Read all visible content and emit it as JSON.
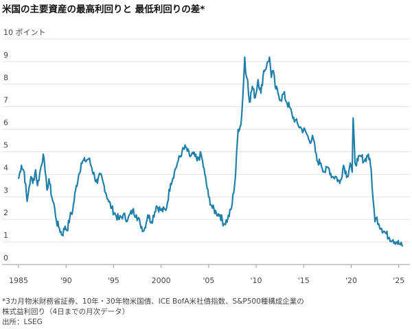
{
  "title": "米国の主要資産の最高利回りと 最低利回りの差*",
  "footnote": {
    "line1": "*3カ月物米財務省証券、10年・30年物米国債、ICE BofA米社債指数、S&P500種構成企業の",
    "line2": "株式益利回り（4日までの月次データ）",
    "source": "出所：LSEG"
  },
  "chart_data": {
    "type": "line",
    "title": "米国の主要資産の最高利回りと 最低利回りの差*",
    "ylabel": "ポイント",
    "ylim": [
      0,
      10
    ],
    "yticks": [
      0,
      1,
      2,
      3,
      4,
      5,
      6,
      7,
      8,
      9,
      10
    ],
    "ytick_labels": [
      "0",
      "1",
      "2",
      "3",
      "4",
      "5",
      "6",
      "7",
      "8",
      "9",
      "10"
    ],
    "top_tick_label": "10 ポイント",
    "xlim": [
      1985,
      2025.6
    ],
    "xticks": [
      1985,
      1990,
      1995,
      2000,
      2005,
      2010,
      2015,
      2020,
      2025
    ],
    "xtick_labels": [
      "1985",
      "'90",
      "'95",
      "2000",
      "'05",
      "'10",
      "'15",
      "'20",
      "'25"
    ],
    "grid": true,
    "line_color": "#1f7fa8",
    "series": [
      {
        "x": [
          1985.0,
          1985.3,
          1985.6,
          1985.9,
          1986.1,
          1986.3,
          1986.5,
          1986.8,
          1987.0,
          1987.3,
          1987.6,
          1987.8,
          1988.0,
          1988.2,
          1988.5,
          1988.8,
          1989.0,
          1989.3,
          1989.6,
          1989.9,
          1990.1,
          1990.4,
          1990.7,
          1991.0,
          1991.3,
          1991.6,
          1992.0,
          1992.4,
          1992.7,
          1993.0,
          1993.3,
          1993.6,
          1994.0,
          1994.4,
          1994.8,
          1995.2,
          1995.6,
          1996.0,
          1996.5,
          1997.0,
          1997.4,
          1997.8,
          1998.2,
          1998.6,
          1999.0,
          1999.5,
          2000.0,
          2000.5,
          2001.0,
          2001.4,
          2001.8,
          2002.2,
          2002.6,
          2003.0,
          2003.4,
          2003.8,
          2004.2,
          2004.6,
          2005.0,
          2005.4,
          2005.8,
          2006.2,
          2006.6,
          2007.0,
          2007.4,
          2007.8,
          2008.1,
          2008.4,
          2008.6,
          2008.8,
          2008.9,
          2009.1,
          2009.3,
          2009.6,
          2009.9,
          2010.2,
          2010.5,
          2010.8,
          2011.1,
          2011.4,
          2011.6,
          2011.8,
          2012.0,
          2012.3,
          2012.6,
          2012.9,
          2013.2,
          2013.5,
          2013.8,
          2014.1,
          2014.4,
          2014.8,
          2015.2,
          2015.6,
          2016.0,
          2016.4,
          2016.8,
          2017.2,
          2017.6,
          2018.0,
          2018.4,
          2018.8,
          2019.2,
          2019.6,
          2019.9,
          2020.1,
          2020.2,
          2020.4,
          2020.7,
          2021.0,
          2021.4,
          2021.8,
          2022.1,
          2022.3,
          2022.5,
          2022.7,
          2022.9,
          2023.2,
          2023.6,
          2024.0,
          2024.4,
          2024.8,
          2025.1,
          2025.4
        ],
        "y": [
          3.8,
          4.4,
          4.1,
          2.8,
          3.4,
          3.9,
          3.6,
          4.2,
          3.5,
          4.2,
          4.9,
          4.1,
          3.3,
          3.8,
          3.0,
          2.5,
          1.9,
          1.6,
          1.3,
          1.7,
          1.5,
          2.1,
          2.4,
          3.3,
          3.9,
          4.5,
          4.6,
          4.7,
          4.3,
          3.9,
          3.6,
          4.0,
          3.5,
          2.9,
          2.5,
          2.2,
          2.0,
          2.2,
          2.0,
          2.4,
          2.2,
          1.8,
          1.5,
          2.2,
          1.9,
          2.6,
          2.4,
          2.4,
          3.6,
          4.1,
          4.6,
          5.0,
          5.2,
          4.8,
          4.9,
          4.6,
          4.9,
          4.0,
          3.0,
          2.5,
          2.3,
          2.2,
          1.8,
          2.0,
          2.5,
          3.8,
          6.0,
          6.2,
          7.5,
          9.2,
          8.5,
          8.2,
          7.2,
          7.9,
          7.4,
          8.2,
          7.6,
          8.6,
          8.8,
          9.2,
          8.3,
          8.6,
          7.9,
          7.6,
          7.3,
          7.6,
          7.2,
          7.0,
          6.6,
          6.4,
          6.2,
          6.0,
          5.9,
          5.5,
          5.6,
          4.6,
          4.5,
          4.1,
          4.3,
          3.9,
          3.9,
          3.6,
          4.4,
          3.9,
          4.5,
          4.1,
          6.5,
          4.5,
          4.6,
          4.8,
          4.6,
          4.9,
          4.2,
          2.9,
          1.9,
          2.1,
          1.8,
          1.6,
          1.4,
          1.2,
          1.1,
          1.0,
          0.9,
          0.8
        ]
      }
    ]
  }
}
